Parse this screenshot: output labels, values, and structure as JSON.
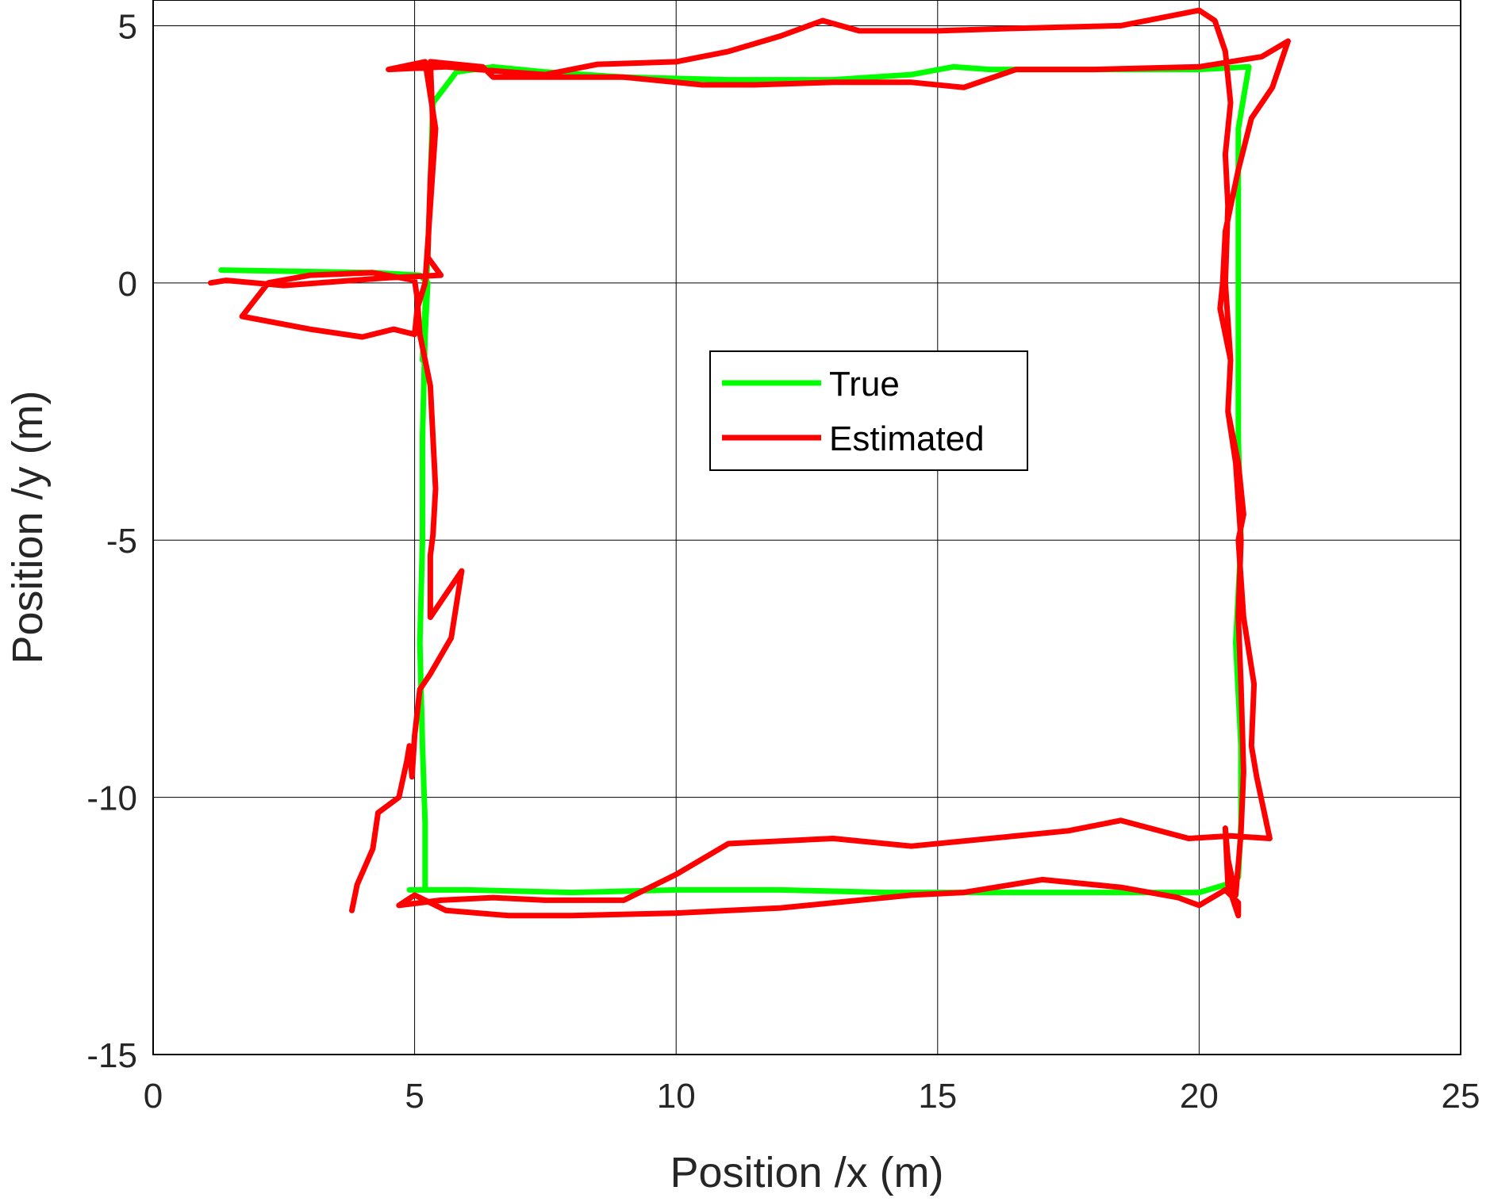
{
  "chart_data": {
    "type": "line",
    "title": "",
    "xlabel": "Position /x (m)",
    "ylabel": "Position /y (m)",
    "xlim": [
      0,
      25
    ],
    "ylim": [
      -15,
      5.5
    ],
    "xticks": [
      0,
      5,
      10,
      15,
      20,
      25
    ],
    "yticks": [
      -15,
      -10,
      -5,
      0,
      5
    ],
    "grid": true,
    "legend_position": "center",
    "series": [
      {
        "name": "True",
        "color": "#00ff00",
        "points": [
          [
            1.3,
            0.25
          ],
          [
            4.2,
            0.2
          ],
          [
            5.1,
            0.15
          ],
          [
            5.25,
            0.0
          ],
          [
            5.2,
            -1.0
          ],
          [
            5.15,
            -3.0
          ],
          [
            5.15,
            -5.0
          ],
          [
            5.1,
            -7.0
          ],
          [
            5.15,
            -9.0
          ],
          [
            5.2,
            -10.5
          ],
          [
            5.2,
            -11.8
          ],
          [
            4.9,
            -11.8
          ],
          [
            6.0,
            -11.8
          ],
          [
            8.0,
            -11.85
          ],
          [
            10.0,
            -11.8
          ],
          [
            12.0,
            -11.8
          ],
          [
            14.0,
            -11.85
          ],
          [
            16.0,
            -11.85
          ],
          [
            18.0,
            -11.85
          ],
          [
            20.0,
            -11.85
          ],
          [
            20.5,
            -11.7
          ],
          [
            20.75,
            -11.55
          ],
          [
            20.8,
            -10.5
          ],
          [
            20.8,
            -9.0
          ],
          [
            20.7,
            -7.0
          ],
          [
            20.8,
            -5.0
          ],
          [
            20.75,
            -3.0
          ],
          [
            20.75,
            -1.0
          ],
          [
            20.75,
            1.0
          ],
          [
            20.75,
            3.0
          ],
          [
            20.95,
            4.2
          ],
          [
            20.0,
            4.15
          ],
          [
            18.0,
            4.15
          ],
          [
            16.0,
            4.15
          ],
          [
            15.3,
            4.2
          ],
          [
            14.5,
            4.05
          ],
          [
            13.0,
            3.95
          ],
          [
            11.0,
            3.95
          ],
          [
            9.0,
            4.0
          ],
          [
            7.5,
            4.1
          ],
          [
            6.5,
            4.2
          ],
          [
            5.8,
            4.1
          ],
          [
            5.35,
            3.5
          ],
          [
            5.3,
            2.0
          ],
          [
            5.25,
            0.5
          ],
          [
            5.2,
            -0.5
          ],
          [
            5.15,
            -1.5
          ]
        ]
      },
      {
        "name": "Estimated",
        "color": "#ff0000",
        "points": [
          [
            1.1,
            0.0
          ],
          [
            1.4,
            0.05
          ],
          [
            2.5,
            -0.05
          ],
          [
            4.5,
            0.1
          ],
          [
            5.5,
            0.15
          ],
          [
            5.25,
            0.5
          ],
          [
            5.3,
            2.0
          ],
          [
            5.35,
            3.0
          ],
          [
            5.3,
            4.3
          ],
          [
            6.3,
            4.2
          ],
          [
            6.5,
            4.0
          ],
          [
            7.5,
            4.0
          ],
          [
            9.0,
            4.0
          ],
          [
            10.5,
            3.85
          ],
          [
            11.5,
            3.85
          ],
          [
            13.0,
            3.9
          ],
          [
            14.5,
            3.9
          ],
          [
            15.5,
            3.8
          ],
          [
            16.5,
            4.15
          ],
          [
            18.0,
            4.15
          ],
          [
            20.0,
            4.2
          ],
          [
            21.2,
            4.4
          ],
          [
            21.7,
            4.7
          ],
          [
            21.4,
            3.8
          ],
          [
            21.0,
            3.2
          ],
          [
            20.75,
            2.2
          ],
          [
            20.5,
            1.0
          ],
          [
            20.45,
            0.0
          ],
          [
            20.4,
            -0.5
          ],
          [
            20.6,
            -1.5
          ],
          [
            20.55,
            -2.5
          ],
          [
            20.75,
            -3.5
          ],
          [
            20.85,
            -4.5
          ],
          [
            20.75,
            -5.0
          ],
          [
            20.85,
            -6.5
          ],
          [
            21.05,
            -7.8
          ],
          [
            21.0,
            -9.0
          ],
          [
            21.1,
            -9.6
          ],
          [
            21.35,
            -10.8
          ],
          [
            20.6,
            -10.75
          ],
          [
            19.8,
            -10.8
          ],
          [
            18.5,
            -10.45
          ],
          [
            17.5,
            -10.65
          ],
          [
            16.0,
            -10.8
          ],
          [
            14.5,
            -10.95
          ],
          [
            13.0,
            -10.8
          ],
          [
            11.0,
            -10.9
          ],
          [
            10.0,
            -11.5
          ],
          [
            9.0,
            -12.0
          ],
          [
            7.5,
            -12.0
          ],
          [
            6.5,
            -11.95
          ],
          [
            5.5,
            -12.0
          ],
          [
            4.7,
            -12.1
          ],
          [
            5.0,
            -11.9
          ],
          [
            5.6,
            -12.2
          ],
          [
            6.8,
            -12.3
          ],
          [
            8.0,
            -12.3
          ],
          [
            10.0,
            -12.25
          ],
          [
            12.0,
            -12.15
          ],
          [
            13.5,
            -12.0
          ],
          [
            14.5,
            -11.9
          ],
          [
            15.5,
            -11.85
          ],
          [
            17.0,
            -11.6
          ],
          [
            18.5,
            -11.75
          ],
          [
            19.6,
            -11.95
          ],
          [
            20.0,
            -12.1
          ],
          [
            20.5,
            -11.8
          ],
          [
            20.75,
            -12.05
          ],
          [
            20.75,
            -12.3
          ],
          [
            20.55,
            -11.7
          ],
          [
            20.5,
            -10.6
          ],
          [
            20.55,
            -11.2
          ],
          [
            20.7,
            -11.9
          ],
          [
            20.8,
            -10.7
          ],
          [
            20.85,
            -9.5
          ],
          [
            20.8,
            -7.8
          ],
          [
            20.75,
            -6.5
          ],
          [
            20.8,
            -5.0
          ],
          [
            20.7,
            -3.5
          ],
          [
            20.55,
            -2.5
          ],
          [
            20.6,
            -1.5
          ],
          [
            20.5,
            0.0
          ],
          [
            20.55,
            1.5
          ],
          [
            20.5,
            2.5
          ],
          [
            20.6,
            3.5
          ],
          [
            20.5,
            4.5
          ],
          [
            20.3,
            5.1
          ],
          [
            20.0,
            5.3
          ],
          [
            18.5,
            5.0
          ],
          [
            16.5,
            4.95
          ],
          [
            15.0,
            4.9
          ],
          [
            13.5,
            4.9
          ],
          [
            12.8,
            5.1
          ],
          [
            12.0,
            4.8
          ],
          [
            11.0,
            4.5
          ],
          [
            10.0,
            4.3
          ],
          [
            8.5,
            4.25
          ],
          [
            7.5,
            4.05
          ],
          [
            6.8,
            4.1
          ],
          [
            5.6,
            4.2
          ],
          [
            4.5,
            4.15
          ],
          [
            5.2,
            4.3
          ],
          [
            5.4,
            3.0
          ],
          [
            5.3,
            1.5
          ],
          [
            5.2,
            0.0
          ],
          [
            5.05,
            -0.5
          ],
          [
            5.0,
            -1.0
          ],
          [
            4.6,
            -0.9
          ],
          [
            4.0,
            -1.05
          ],
          [
            3.0,
            -0.9
          ],
          [
            1.7,
            -0.65
          ],
          [
            2.2,
            0.0
          ],
          [
            3.0,
            0.15
          ],
          [
            4.2,
            0.2
          ],
          [
            5.0,
            0.05
          ],
          [
            5.05,
            -0.3
          ],
          [
            5.1,
            -1.0
          ],
          [
            5.3,
            -2.0
          ],
          [
            5.4,
            -4.0
          ],
          [
            5.35,
            -4.9
          ],
          [
            5.3,
            -5.3
          ],
          [
            5.3,
            -6.5
          ],
          [
            5.9,
            -5.6
          ],
          [
            5.7,
            -6.9
          ],
          [
            5.3,
            -7.6
          ],
          [
            5.1,
            -7.9
          ],
          [
            5.0,
            -8.8
          ],
          [
            4.95,
            -9.6
          ],
          [
            4.9,
            -9.0
          ],
          [
            4.85,
            -9.3
          ],
          [
            4.7,
            -10.0
          ],
          [
            4.3,
            -10.3
          ],
          [
            4.2,
            -11.0
          ],
          [
            3.9,
            -11.7
          ],
          [
            3.8,
            -12.2
          ]
        ]
      }
    ]
  }
}
